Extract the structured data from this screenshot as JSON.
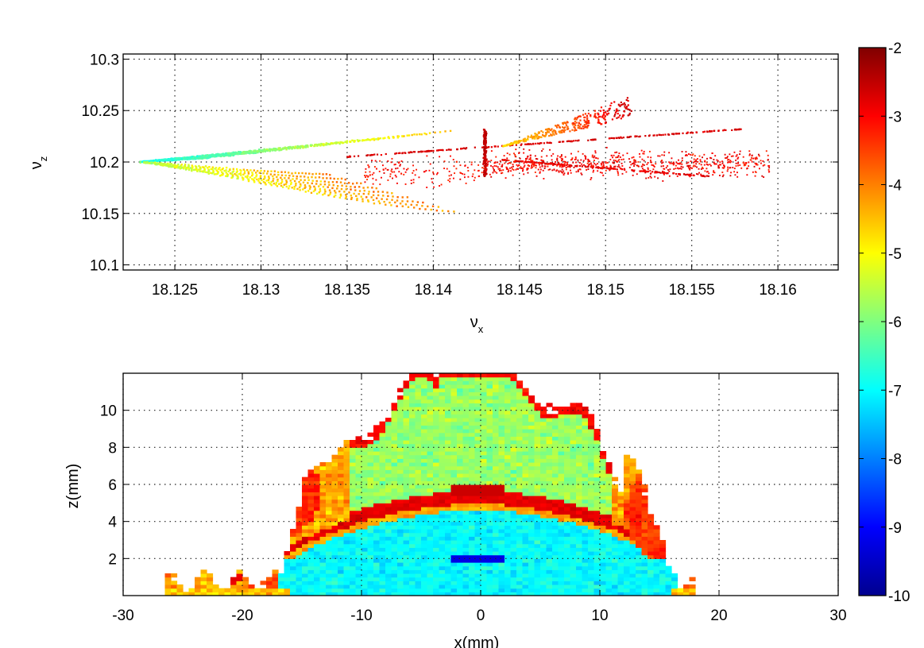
{
  "chart_data": [
    {
      "type": "scatter",
      "title": "",
      "xlabel": "ν",
      "xlabel_sub": "x",
      "ylabel": "ν",
      "ylabel_sub": "z",
      "xlim": [
        18.122,
        18.1635
      ],
      "ylim": [
        10.095,
        10.305
      ],
      "xticks": [
        18.125,
        18.13,
        18.135,
        18.14,
        18.145,
        18.15,
        18.155,
        18.16
      ],
      "xtick_labels": [
        "18.125",
        "18.13",
        "18.135",
        "18.14",
        "18.145",
        "18.15",
        "18.155",
        "18.16"
      ],
      "yticks": [
        10.1,
        10.15,
        10.2,
        10.25,
        10.3
      ],
      "ytick_labels": [
        "10.1",
        "10.15",
        "10.2",
        "10.25",
        "10.3"
      ],
      "grid": true,
      "color_value": "log10 diffusion (colorbar)",
      "features": [
        {
          "kind": "fan_upper",
          "x": [
            18.123,
            18.141
          ],
          "y": [
            10.2,
            10.228
          ],
          "colors": "cyan-green-yellow"
        },
        {
          "kind": "fan_lower",
          "x": [
            18.123,
            18.141
          ],
          "y": [
            10.2,
            10.155
          ],
          "colors": "green-yellow-orange"
        },
        {
          "kind": "resonance_line",
          "x": [
            18.135,
            18.158
          ],
          "y": [
            10.205,
            10.232
          ],
          "color_value": -2.7
        },
        {
          "kind": "resonance_line",
          "x": [
            18.144,
            18.156
          ],
          "y": [
            10.202,
            10.186
          ],
          "color_value": -2.8
        },
        {
          "kind": "vertical_resonance",
          "x": 18.143,
          "y": [
            10.185,
            10.232
          ],
          "color_value": -2.5
        },
        {
          "kind": "scatter_cloud",
          "x": [
            18.143,
            18.1595
          ],
          "y": [
            10.17,
            10.275
          ],
          "color_value_range": [
            -2.5,
            -4.5
          ]
        }
      ]
    },
    {
      "type": "heatmap",
      "title": "",
      "xlabel": "x(mm)",
      "ylabel": "z(mm)",
      "xlim": [
        -30,
        30
      ],
      "ylim": [
        0,
        12
      ],
      "xticks": [
        -30,
        -20,
        -10,
        0,
        10,
        20,
        30
      ],
      "xtick_labels": [
        "-30",
        "-20",
        "-10",
        "0",
        "10",
        "20",
        "30"
      ],
      "yticks": [
        2,
        4,
        6,
        8,
        10
      ],
      "ytick_labels": [
        "2",
        "4",
        "6",
        "8",
        "10"
      ],
      "grid": true,
      "value_range": [
        -10,
        -2
      ],
      "features": {
        "stable_region_x": [
          -26.5,
          18
        ],
        "lower_core_value": -7.0,
        "lower_core_x": [
          -21,
          13.5
        ],
        "central_column_x": [
          -2.5,
          2
        ],
        "center_deep_z": [
          1.7,
          2.2
        ],
        "center_deep_value": -9.2,
        "upper_core_value": -5.8,
        "upper_core_x": [
          -14,
          14
        ],
        "upper_core_z": [
          5.8,
          11.5
        ],
        "boundary_value": -2.8,
        "lobes": [
          {
            "x_center": -17.5,
            "z_center": 5.6
          },
          {
            "x_center": 15.2,
            "z_center": 4.5
          }
        ]
      }
    },
    {
      "type": "colorbar",
      "colormap": "jet",
      "range": [
        -10,
        -2
      ],
      "ticks": [
        -10,
        -9,
        -8,
        -7,
        -6,
        -5,
        -4,
        -3,
        -2
      ],
      "tick_labels": [
        "-10",
        "-9",
        "-8",
        "-7",
        "-6",
        "-5",
        "-4",
        "-3",
        "-2"
      ]
    }
  ]
}
